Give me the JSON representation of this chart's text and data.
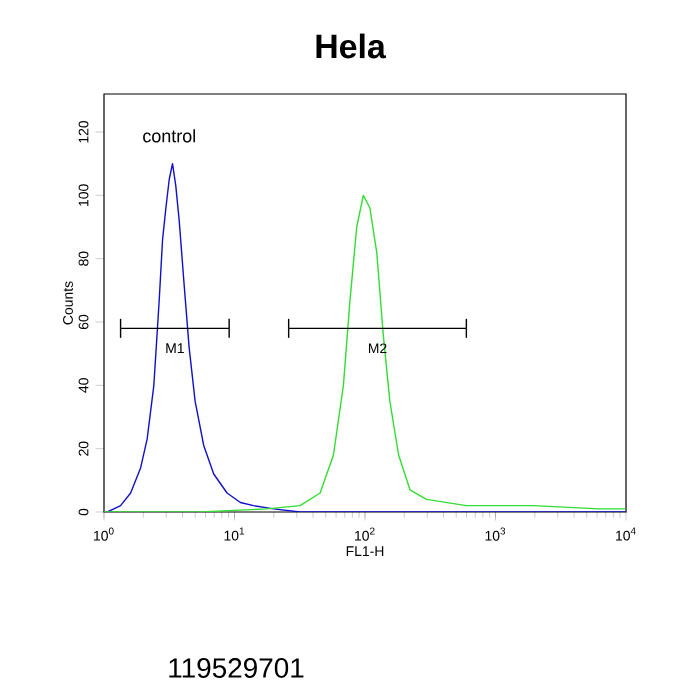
{
  "chart_data": {
    "type": "line",
    "title": "Hela",
    "xlabel": "FL1-H",
    "ylabel": "Counts",
    "log": "x",
    "xlim": [
      1,
      10000
    ],
    "ylim": [
      0,
      132
    ],
    "xticks": [
      {
        "value": 1,
        "label": "10$^{0}$"
      },
      {
        "value": 10,
        "label": "10$^{1}$"
      },
      {
        "value": 100,
        "label": "10$^{2}$"
      },
      {
        "value": 1000,
        "label": "10$^{3}$"
      },
      {
        "value": 10000,
        "label": "10$^{4}$"
      }
    ],
    "yticks": [
      0,
      20,
      40,
      60,
      80,
      100,
      120
    ],
    "marker": "none",
    "line_style": "solid",
    "series": [
      {
        "color": "#1010c8",
        "x": [
          1.06,
          1.34,
          1.6,
          1.91,
          2.14,
          2.41,
          2.65,
          2.81,
          2.98,
          3.16,
          3.35,
          3.55,
          3.77,
          4.09,
          4.49,
          4.99,
          5.81,
          6.93,
          8.77,
          11.1,
          14.0,
          19.9,
          31.8,
          185,
          1935,
          9900
        ],
        "values": [
          0,
          2,
          6,
          14,
          23,
          40,
          67,
          86,
          96,
          105,
          110,
          103,
          92,
          73,
          52,
          35,
          21,
          12,
          6,
          3,
          2,
          1,
          0,
          0,
          0,
          0
        ]
      },
      {
        "color": "#33dd33",
        "x": [
          1,
          5.48,
          17.7,
          31.8,
          45.3,
          57.3,
          68.3,
          76.8,
          86.4,
          97.1,
          109,
          123,
          138,
          155,
          181,
          221,
          296,
          598,
          1935,
          6250,
          9900
        ],
        "values": [
          0,
          0,
          1,
          2,
          6,
          18,
          40,
          67,
          90,
          100,
          96,
          82,
          56,
          35,
          18,
          7,
          4,
          2,
          2,
          1,
          1
        ]
      },
      {
        "name": "M1",
        "color": "#000000",
        "x": [
          1.34,
          9.1
        ],
        "values": [
          58,
          58
        ],
        "errors": [
          3,
          3
        ]
      },
      {
        "name": "M2",
        "color": "#000000",
        "x": [
          26,
          598
        ],
        "values": [
          58,
          58
        ],
        "errors": [
          3,
          3
        ]
      }
    ],
    "annotations": [
      "control",
      "119529701"
    ]
  }
}
